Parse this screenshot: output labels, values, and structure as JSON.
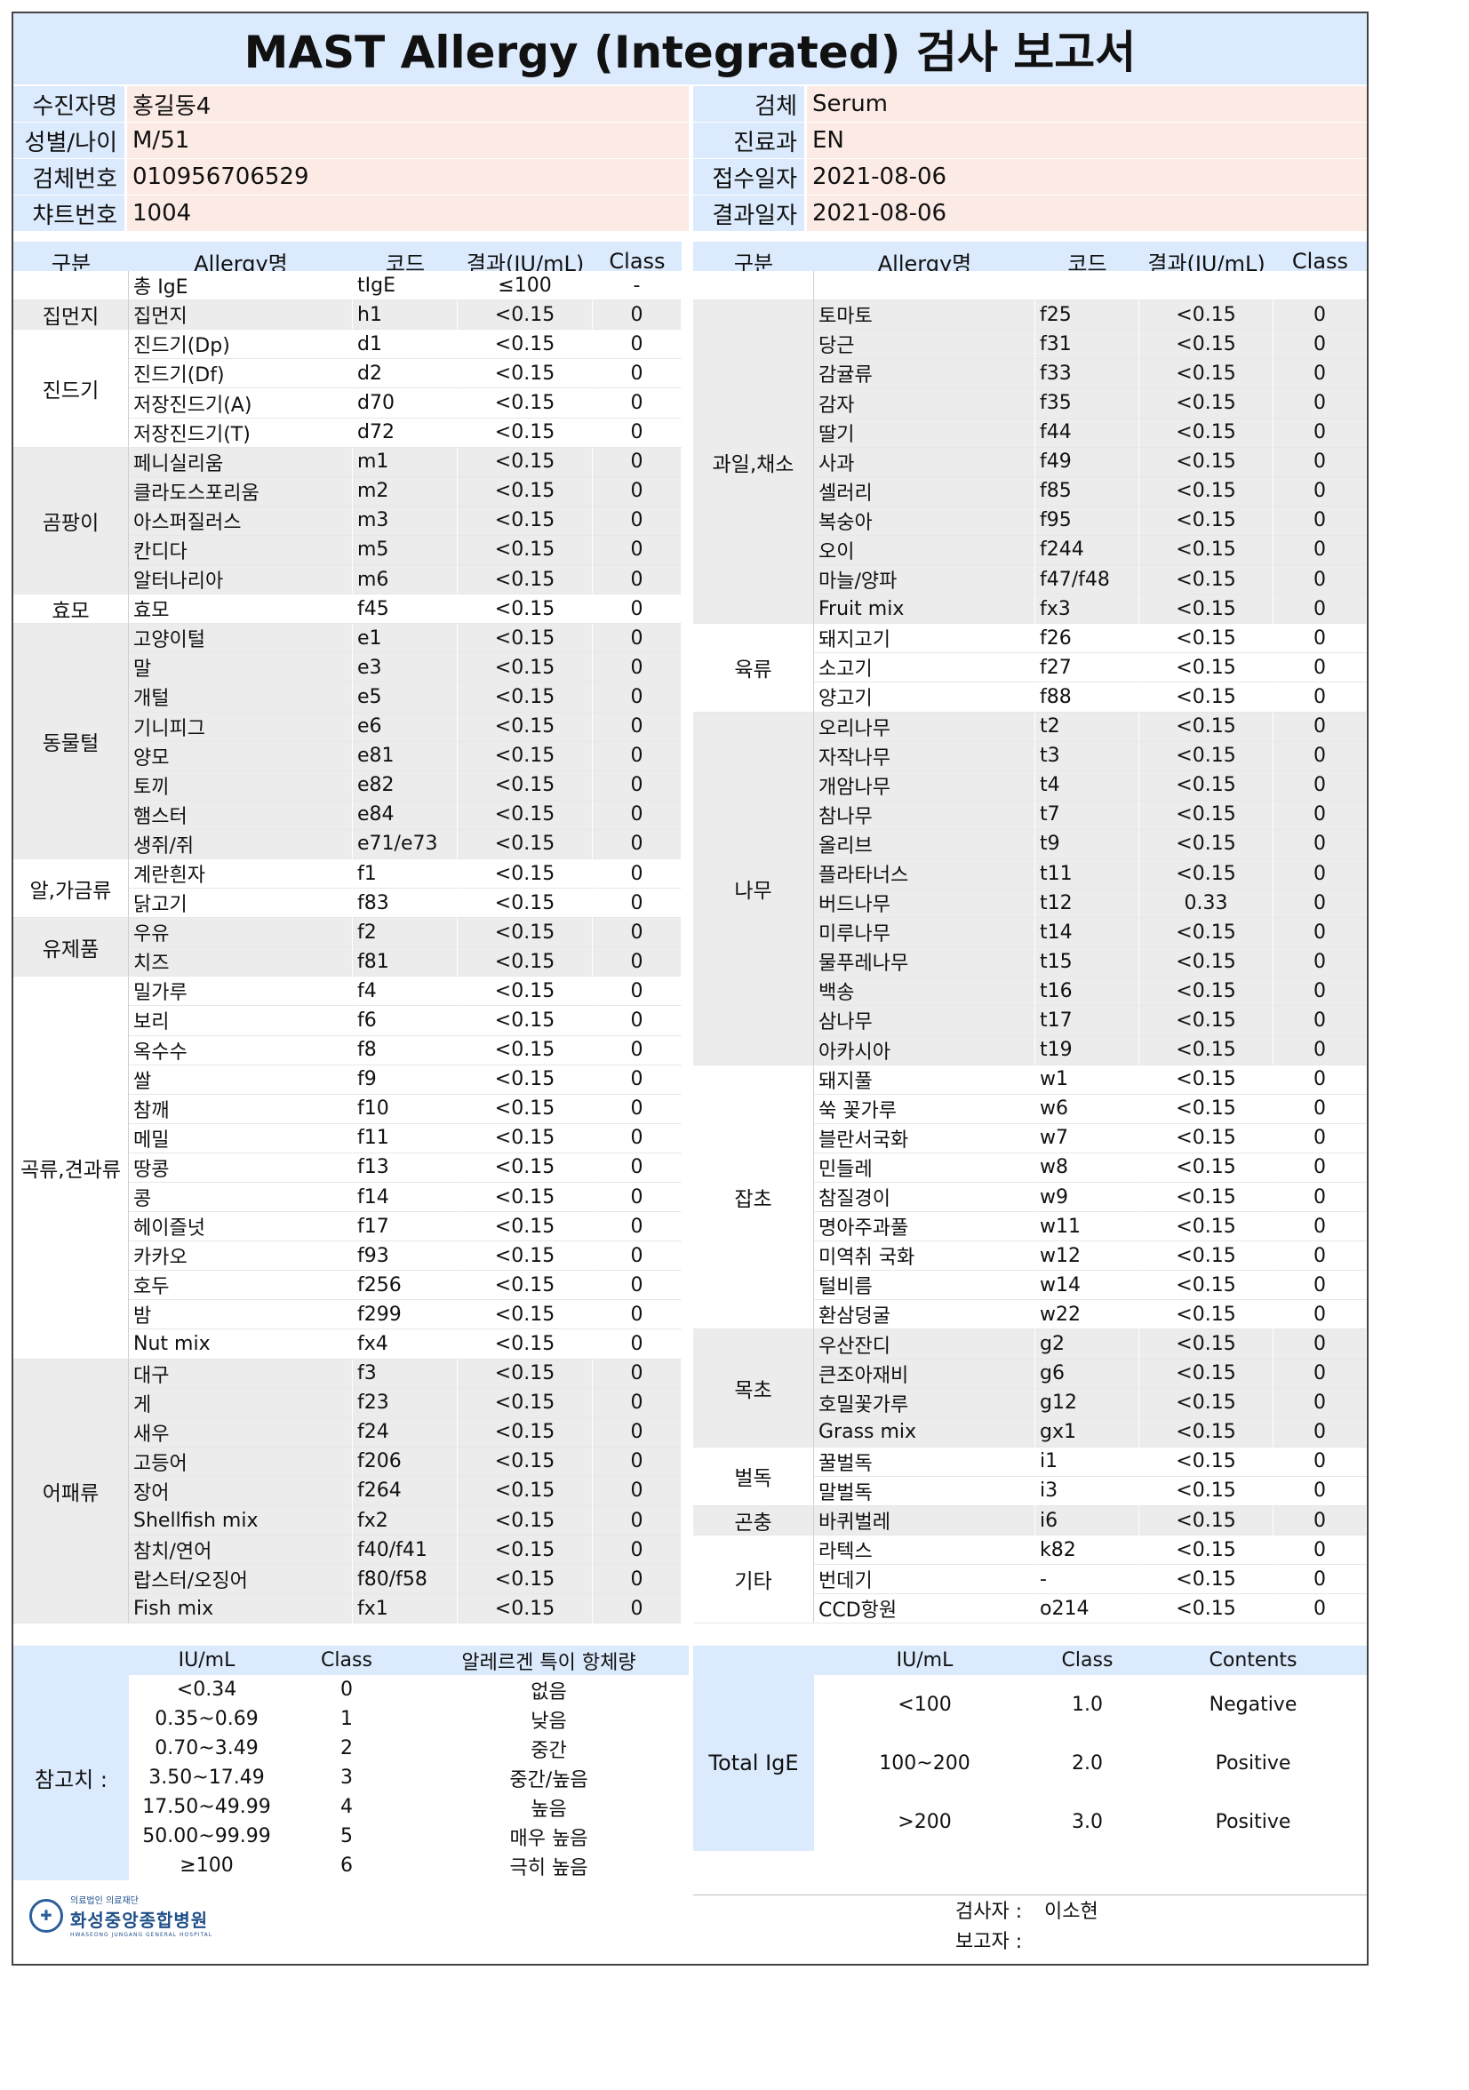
{
  "title": "MAST Allergy (Integrated) 검사 보고서",
  "info_left": [
    {
      "label": "수진자명",
      "value": "홍길동4"
    },
    {
      "label": "성별/나이",
      "value": "M/51"
    },
    {
      "label": "검체번호",
      "value": "010956706529"
    },
    {
      "label": "챠트번호",
      "value": "1004"
    }
  ],
  "info_right": [
    {
      "label": "검체",
      "value": "Serum"
    },
    {
      "label": "진료과",
      "value": "EN"
    },
    {
      "label": "접수일자",
      "value": "2021-08-06"
    },
    {
      "label": "결과일자",
      "value": "2021-08-06"
    }
  ],
  "table_headers": [
    "구분",
    "Allergy명",
    "코드",
    "결과(IU/mL)",
    "Class"
  ],
  "left_groups": [
    {
      "name": "",
      "items": [
        [
          "총 IgE",
          "tIgE",
          "≤100",
          "-"
        ]
      ]
    },
    {
      "name": "집먼지",
      "items": [
        [
          "집먼지",
          "h1",
          "<0.15",
          "0"
        ]
      ]
    },
    {
      "name": "진드기",
      "items": [
        [
          "진드기(Dp)",
          "d1",
          "<0.15",
          "0"
        ],
        [
          "진드기(Df)",
          "d2",
          "<0.15",
          "0"
        ],
        [
          "저장진드기(A)",
          "d70",
          "<0.15",
          "0"
        ],
        [
          "저장진드기(T)",
          "d72",
          "<0.15",
          "0"
        ]
      ]
    },
    {
      "name": "곰팡이",
      "items": [
        [
          "페니실리움",
          "m1",
          "<0.15",
          "0"
        ],
        [
          "클라도스포리움",
          "m2",
          "<0.15",
          "0"
        ],
        [
          "아스퍼질러스",
          "m3",
          "<0.15",
          "0"
        ],
        [
          "칸디다",
          "m5",
          "<0.15",
          "0"
        ],
        [
          "알터나리아",
          "m6",
          "<0.15",
          "0"
        ]
      ]
    },
    {
      "name": "효모",
      "items": [
        [
          "효모",
          "f45",
          "<0.15",
          "0"
        ]
      ]
    },
    {
      "name": "동물털",
      "items": [
        [
          "고양이털",
          "e1",
          "<0.15",
          "0"
        ],
        [
          "말",
          "e3",
          "<0.15",
          "0"
        ],
        [
          "개털",
          "e5",
          "<0.15",
          "0"
        ],
        [
          "기니피그",
          "e6",
          "<0.15",
          "0"
        ],
        [
          "양모",
          "e81",
          "<0.15",
          "0"
        ],
        [
          "토끼",
          "e82",
          "<0.15",
          "0"
        ],
        [
          "햄스터",
          "e84",
          "<0.15",
          "0"
        ],
        [
          "생쥐/쥐",
          "e71/e73",
          "<0.15",
          "0"
        ]
      ]
    },
    {
      "name": "알,가금류",
      "items": [
        [
          "계란흰자",
          "f1",
          "<0.15",
          "0"
        ],
        [
          "닭고기",
          "f83",
          "<0.15",
          "0"
        ]
      ]
    },
    {
      "name": "유제품",
      "items": [
        [
          "우유",
          "f2",
          "<0.15",
          "0"
        ],
        [
          "치즈",
          "f81",
          "<0.15",
          "0"
        ]
      ]
    },
    {
      "name": "곡류,견과류",
      "items": [
        [
          "밀가루",
          "f4",
          "<0.15",
          "0"
        ],
        [
          "보리",
          "f6",
          "<0.15",
          "0"
        ],
        [
          "옥수수",
          "f8",
          "<0.15",
          "0"
        ],
        [
          "쌀",
          "f9",
          "<0.15",
          "0"
        ],
        [
          "참깨",
          "f10",
          "<0.15",
          "0"
        ],
        [
          "메밀",
          "f11",
          "<0.15",
          "0"
        ],
        [
          "땅콩",
          "f13",
          "<0.15",
          "0"
        ],
        [
          "콩",
          "f14",
          "<0.15",
          "0"
        ],
        [
          "헤이즐넛",
          "f17",
          "<0.15",
          "0"
        ],
        [
          "카카오",
          "f93",
          "<0.15",
          "0"
        ],
        [
          "호두",
          "f256",
          "<0.15",
          "0"
        ],
        [
          "밤",
          "f299",
          "<0.15",
          "0"
        ],
        [
          "Nut mix",
          "fx4",
          "<0.15",
          "0"
        ]
      ]
    },
    {
      "name": "어패류",
      "items": [
        [
          "대구",
          "f3",
          "<0.15",
          "0"
        ],
        [
          "게",
          "f23",
          "<0.15",
          "0"
        ],
        [
          "새우",
          "f24",
          "<0.15",
          "0"
        ],
        [
          "고등어",
          "f206",
          "<0.15",
          "0"
        ],
        [
          "장어",
          "f264",
          "<0.15",
          "0"
        ],
        [
          "Shellfish mix",
          "fx2",
          "<0.15",
          "0"
        ],
        [
          "참치/연어",
          "f40/f41",
          "<0.15",
          "0"
        ],
        [
          "랍스터/오징어",
          "f80/f58",
          "<0.15",
          "0"
        ],
        [
          "Fish mix",
          "fx1",
          "<0.15",
          "0"
        ]
      ]
    }
  ],
  "right_groups": [
    {
      "name": "",
      "items": [
        [
          "",
          "",
          "",
          ""
        ]
      ]
    },
    {
      "name": "과일,채소",
      "items": [
        [
          "토마토",
          "f25",
          "<0.15",
          "0"
        ],
        [
          "당근",
          "f31",
          "<0.15",
          "0"
        ],
        [
          "감귤류",
          "f33",
          "<0.15",
          "0"
        ],
        [
          "감자",
          "f35",
          "<0.15",
          "0"
        ],
        [
          "딸기",
          "f44",
          "<0.15",
          "0"
        ],
        [
          "사과",
          "f49",
          "<0.15",
          "0"
        ],
        [
          "셀러리",
          "f85",
          "<0.15",
          "0"
        ],
        [
          "복숭아",
          "f95",
          "<0.15",
          "0"
        ],
        [
          "오이",
          "f244",
          "<0.15",
          "0"
        ],
        [
          "마늘/양파",
          "f47/f48",
          "<0.15",
          "0"
        ],
        [
          "Fruit mix",
          "fx3",
          "<0.15",
          "0"
        ]
      ]
    },
    {
      "name": "육류",
      "items": [
        [
          "돼지고기",
          "f26",
          "<0.15",
          "0"
        ],
        [
          "소고기",
          "f27",
          "<0.15",
          "0"
        ],
        [
          "양고기",
          "f88",
          "<0.15",
          "0"
        ]
      ]
    },
    {
      "name": "나무",
      "items": [
        [
          "오리나무",
          "t2",
          "<0.15",
          "0"
        ],
        [
          "자작나무",
          "t3",
          "<0.15",
          "0"
        ],
        [
          "개암나무",
          "t4",
          "<0.15",
          "0"
        ],
        [
          "참나무",
          "t7",
          "<0.15",
          "0"
        ],
        [
          "올리브",
          "t9",
          "<0.15",
          "0"
        ],
        [
          "플라타너스",
          "t11",
          "<0.15",
          "0"
        ],
        [
          "버드나무",
          "t12",
          "0.33",
          "0"
        ],
        [
          "미루나무",
          "t14",
          "<0.15",
          "0"
        ],
        [
          "물푸레나무",
          "t15",
          "<0.15",
          "0"
        ],
        [
          "백송",
          "t16",
          "<0.15",
          "0"
        ],
        [
          "삼나무",
          "t17",
          "<0.15",
          "0"
        ],
        [
          "아카시아",
          "t19",
          "<0.15",
          "0"
        ]
      ]
    },
    {
      "name": "잡초",
      "items": [
        [
          "돼지풀",
          "w1",
          "<0.15",
          "0"
        ],
        [
          "쑥 꽃가루",
          "w6",
          "<0.15",
          "0"
        ],
        [
          "블란서국화",
          "w7",
          "<0.15",
          "0"
        ],
        [
          "민들레",
          "w8",
          "<0.15",
          "0"
        ],
        [
          "참질경이",
          "w9",
          "<0.15",
          "0"
        ],
        [
          "명아주과풀",
          "w11",
          "<0.15",
          "0"
        ],
        [
          "미역취 국화",
          "w12",
          "<0.15",
          "0"
        ],
        [
          "털비름",
          "w14",
          "<0.15",
          "0"
        ],
        [
          "환삼덩굴",
          "w22",
          "<0.15",
          "0"
        ]
      ]
    },
    {
      "name": "목초",
      "items": [
        [
          "우산잔디",
          "g2",
          "<0.15",
          "0"
        ],
        [
          "큰조아재비",
          "g6",
          "<0.15",
          "0"
        ],
        [
          "호밀꽃가루",
          "g12",
          "<0.15",
          "0"
        ],
        [
          "Grass mix",
          "gx1",
          "<0.15",
          "0"
        ]
      ]
    },
    {
      "name": "벌독",
      "items": [
        [
          "꿀벌독",
          "i1",
          "<0.15",
          "0"
        ],
        [
          "말벌독",
          "i3",
          "<0.15",
          "0"
        ]
      ]
    },
    {
      "name": "곤충",
      "items": [
        [
          "바퀴벌레",
          "i6",
          "<0.15",
          "0"
        ]
      ]
    },
    {
      "name": "기타",
      "items": [
        [
          "라텍스",
          "k82",
          "<0.15",
          "0"
        ],
        [
          "번데기",
          "-",
          "<0.15",
          "0"
        ],
        [
          "CCD항원",
          "o214",
          "<0.15",
          "0"
        ]
      ]
    }
  ],
  "reference": {
    "label": "참고치 :",
    "headers": [
      "IU/mL",
      "Class",
      "알레르겐 특이 항체량"
    ],
    "rows": [
      [
        "<0.34",
        "0",
        "없음"
      ],
      [
        "0.35~0.69",
        "1",
        "낮음"
      ],
      [
        "0.70~3.49",
        "2",
        "중간"
      ],
      [
        "3.50~17.49",
        "3",
        "중간/높음"
      ],
      [
        "17.50~49.99",
        "4",
        "높음"
      ],
      [
        "50.00~99.99",
        "5",
        "매우 높음"
      ],
      [
        "≥100",
        "6",
        "극히 높음"
      ]
    ]
  },
  "total_ige": {
    "label": "Total IgE",
    "headers": [
      "IU/mL",
      "Class",
      "Contents"
    ],
    "rows": [
      [
        "<100",
        "1.0",
        "Negative"
      ],
      [
        "100~200",
        "2.0",
        "Positive"
      ],
      [
        ">200",
        "3.0",
        "Positive"
      ]
    ]
  },
  "hospital": {
    "seal": "✚",
    "subtitle": "의료법인 의료재단",
    "name": "화성중앙종합병원",
    "english": "HWASEONG JUNGANG GENERAL HOSPITAL"
  },
  "signatures": {
    "tester_label": "검사자 :",
    "tester_name": "이소현",
    "reporter_label": "보고자 :",
    "reporter_name": ""
  }
}
